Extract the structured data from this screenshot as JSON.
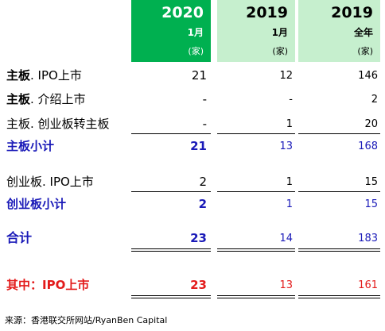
{
  "headers": [
    {
      "year": "2020",
      "period": "1月",
      "unit": "(家)"
    },
    {
      "year": "2019",
      "period": "1月",
      "unit": "(家)"
    },
    {
      "year": "2019",
      "period": "全年",
      "unit": "(家)"
    }
  ],
  "rows": {
    "main_ipo": {
      "label_bold": "主板",
      "label_rest": ". IPO上市",
      "v2020": "21",
      "v2019jan": "12",
      "v2019full": "146"
    },
    "main_intro": {
      "label_bold": "主板",
      "label_rest": ". 介绍上市",
      "v2020": "-",
      "v2019jan": "-",
      "v2019full": "2"
    },
    "main_transfer": {
      "label": "主板. 创业板转主板",
      "v2020": "-",
      "v2019jan": "1",
      "v2019full": "20"
    },
    "main_subtotal": {
      "label": "主板小计",
      "v2020": "21",
      "v2019jan": "13",
      "v2019full": "168"
    },
    "gem_ipo": {
      "label": "创业板. IPO上市",
      "v2020": "2",
      "v2019jan": "1",
      "v2019full": "15"
    },
    "gem_subtotal": {
      "label": "创业板小计",
      "v2020": "2",
      "v2019jan": "1",
      "v2019full": "15"
    },
    "total": {
      "label": "合计",
      "v2020": "23",
      "v2019jan": "14",
      "v2019full": "183"
    },
    "of_which_ipo": {
      "label": "其中：IPO上市",
      "v2020": "23",
      "v2019jan": "13",
      "v2019full": "161"
    }
  },
  "source": "来源：香港联交所网站/RyanBen Capital",
  "colors": {
    "header_2020": "#00b050",
    "header_2019": "#c6efce",
    "subtotal_text": "#1a1ab8",
    "highlight_text": "#e31b1b"
  }
}
